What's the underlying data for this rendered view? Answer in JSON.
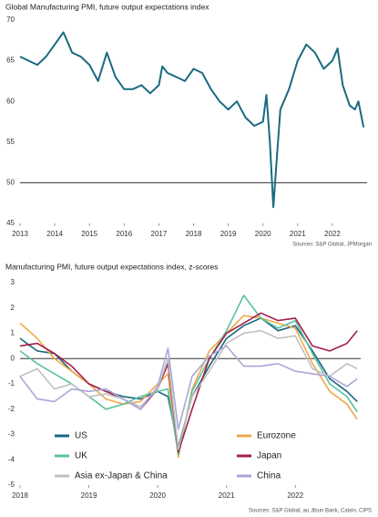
{
  "chart_data": [
    {
      "type": "line",
      "title": "Global Manufacturing PMI, future output expectations index",
      "source": "Sources: S&P Global, JPMorgan",
      "x": [
        2013,
        2013.25,
        2013.5,
        2013.75,
        2014,
        2014.25,
        2014.5,
        2014.75,
        2015,
        2015.25,
        2015.5,
        2015.75,
        2016,
        2016.25,
        2016.5,
        2016.75,
        2017,
        2017.1,
        2017.25,
        2017.5,
        2017.75,
        2018,
        2018.25,
        2018.5,
        2018.75,
        2019,
        2019.25,
        2019.5,
        2019.75,
        2020,
        2020.1,
        2020.2,
        2020.3,
        2020.4,
        2020.5,
        2020.75,
        2021,
        2021.25,
        2021.5,
        2021.75,
        2022,
        2022.15,
        2022.3,
        2022.5,
        2022.65,
        2022.75,
        2022.9
      ],
      "series": [
        {
          "name": "Global",
          "color": "#1a6a80",
          "values": [
            65.5,
            65,
            64.5,
            65.5,
            67,
            68.5,
            66,
            65.5,
            64.5,
            62.5,
            66,
            63,
            61.5,
            61.5,
            62,
            61,
            62,
            64.3,
            63.5,
            63,
            62.5,
            64,
            63.5,
            61.5,
            60,
            59,
            60,
            58,
            57,
            57.5,
            60.8,
            55,
            47,
            53,
            59,
            61.5,
            65,
            67,
            66,
            64,
            65,
            66.5,
            62,
            59.5,
            59,
            60,
            56.8
          ]
        }
      ],
      "xlim": [
        2013,
        2023
      ],
      "xticks": [
        2013,
        2014,
        2015,
        2016,
        2017,
        2018,
        2019,
        2020,
        2021,
        2022
      ],
      "ylim": [
        45,
        70
      ],
      "yticks": [
        45,
        50,
        55,
        60,
        65,
        70
      ],
      "reference_line": 50
    },
    {
      "type": "line",
      "title": "Manufacturing PMI, future output expectations index, z-scores",
      "source": "Sources: S&P Global, au Jibun Bank, Caixin, CIPS",
      "x": [
        2018,
        2018.25,
        2018.5,
        2018.75,
        2019,
        2019.25,
        2019.5,
        2019.75,
        2020,
        2020.15,
        2020.3,
        2020.5,
        2020.75,
        2021,
        2021.25,
        2021.5,
        2021.75,
        2022,
        2022.25,
        2022.5,
        2022.75,
        2022.9
      ],
      "series": [
        {
          "name": "US",
          "color": "#1a6680",
          "values": [
            0.8,
            0.3,
            0.2,
            -0.5,
            -1,
            -1.3,
            -1.5,
            -1.6,
            -1.3,
            -1.5,
            -3.5,
            -1.5,
            -0.3,
            0.8,
            1.3,
            1.6,
            1.1,
            1.3,
            0.3,
            -0.8,
            -1.3,
            -1.7
          ]
        },
        {
          "name": "Eurozone",
          "color": "#f0a848",
          "values": [
            1.4,
            0.8,
            0,
            -0.5,
            -1,
            -1.6,
            -1.8,
            -1.7,
            -1,
            -0.6,
            -3.9,
            -1.2,
            0.3,
            1,
            1.7,
            1.6,
            1.4,
            1.2,
            -0.2,
            -1.3,
            -1.8,
            -2.4
          ]
        },
        {
          "name": "UK",
          "color": "#5cc0a0",
          "values": [
            0.3,
            -0.2,
            -0.6,
            -1,
            -1.5,
            -2,
            -1.8,
            -1.5,
            -1.3,
            -1.2,
            -3.8,
            -1.3,
            0,
            1.1,
            2.5,
            1.6,
            1.2,
            1.5,
            0.2,
            -1,
            -1.5,
            -2.1
          ]
        },
        {
          "name": "Japan",
          "color": "#a3204a",
          "values": [
            0.5,
            0.6,
            0.2,
            -0.3,
            -1,
            -1.3,
            -1.6,
            -2,
            -1.2,
            -0.2,
            -3.7,
            -2,
            0,
            1,
            1.4,
            1.8,
            1.5,
            1.6,
            0.5,
            0.3,
            0.6,
            1.1
          ]
        },
        {
          "name": "Asia ex-Japan & China",
          "color": "#c0c0c0",
          "values": [
            -0.7,
            -0.4,
            -1.2,
            -1,
            -1.5,
            -1.4,
            -1.6,
            -1.9,
            -1.2,
            0,
            -3.6,
            -1.5,
            -0.5,
            0.6,
            1,
            1.1,
            0.8,
            0.9,
            -0.4,
            -0.7,
            -0.2,
            -0.4
          ]
        },
        {
          "name": "China",
          "color": "#a8a8d8",
          "values": [
            -0.7,
            -1.6,
            -1.7,
            -1.2,
            -1.3,
            -1.2,
            -1.6,
            -2,
            -1.1,
            0.4,
            -2.8,
            -0.7,
            0.1,
            0.5,
            -0.3,
            -0.3,
            -0.2,
            -0.5,
            -0.6,
            -0.7,
            -1.1,
            -0.8
          ]
        }
      ],
      "xlim": [
        2018,
        2022.95
      ],
      "xticks": [
        2018,
        2019,
        2020,
        2021,
        2022
      ],
      "ylim": [
        -5,
        3
      ],
      "yticks": [
        -5,
        -4,
        -3,
        -2,
        -1,
        0,
        1,
        2,
        3
      ],
      "reference_line": 0,
      "legend": "lower left"
    }
  ]
}
